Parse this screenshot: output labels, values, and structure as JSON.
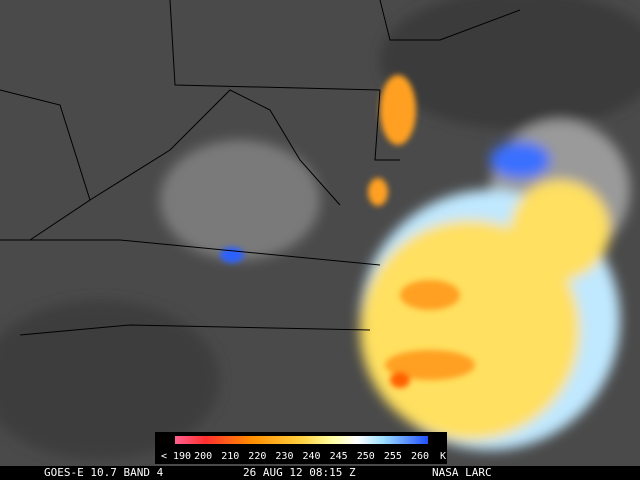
{
  "colorbar": {
    "labels": [
      "< 190",
      "200",
      "210",
      "220",
      "230",
      "240",
      "245",
      "250",
      "255",
      "260"
    ],
    "unit": "K"
  },
  "footer": {
    "satellite": "GOES-E 10.7 BAND 4",
    "timestamp": "26 AUG 12 08:15 Z",
    "source": "NASA LARC"
  }
}
